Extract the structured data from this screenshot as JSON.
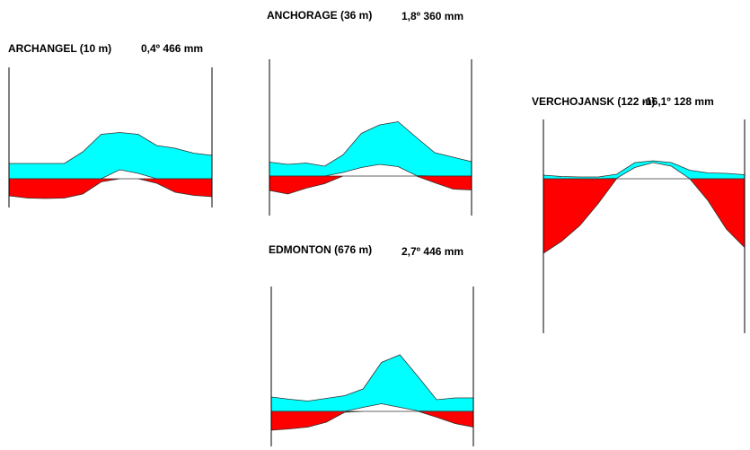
{
  "colors": {
    "precipitation": "#00ffff",
    "temperature": "#ff0000",
    "surplus": "#ffff00",
    "axis": "#000000"
  },
  "chart_data": [
    {
      "type": "area",
      "station": "ARCHANGEL (10 m)",
      "climate": "0,4º 466 mm",
      "months": 12,
      "precipitation": [
        34,
        34,
        34,
        34,
        60,
        99,
        103,
        99,
        74,
        68,
        57,
        52
      ],
      "temperature": [
        -38,
        -43,
        -44,
        -43,
        -34,
        -7,
        20,
        12,
        -10,
        -30,
        -37,
        -40
      ]
    },
    {
      "type": "area",
      "station": "ANCHORAGE (36 m)",
      "climate": "1,8º 360 mm",
      "months": 12,
      "precipitation": [
        31,
        26,
        29,
        22,
        47,
        95,
        114,
        121,
        86,
        52,
        42,
        32
      ],
      "temperature": [
        -32,
        -40,
        -27,
        -17,
        8,
        19,
        26,
        21,
        1,
        -15,
        -29,
        -31
      ]
    },
    {
      "type": "area",
      "station": "EDMONTON (676 m)",
      "climate": "2,7º 446 mm",
      "months": 12,
      "precipitation": [
        32,
        27,
        23,
        29,
        35,
        50,
        109,
        126,
        77,
        26,
        30,
        30
      ],
      "temperature": [
        -42,
        -39,
        -35,
        -24,
        -2,
        9,
        17,
        9,
        1,
        -13,
        -27,
        -35
      ]
    },
    {
      "type": "area",
      "station": "VERCHOJANSK (122 m)",
      "climate": "-16,1º  128 mm",
      "months": 12,
      "precipitation": [
        8,
        5,
        4,
        4,
        10,
        36,
        40,
        36,
        19,
        13,
        12,
        9
      ],
      "temperature": [
        -166,
        -139,
        -104,
        -55,
        1,
        25,
        36,
        28,
        0,
        -49,
        -112,
        -153
      ]
    }
  ]
}
